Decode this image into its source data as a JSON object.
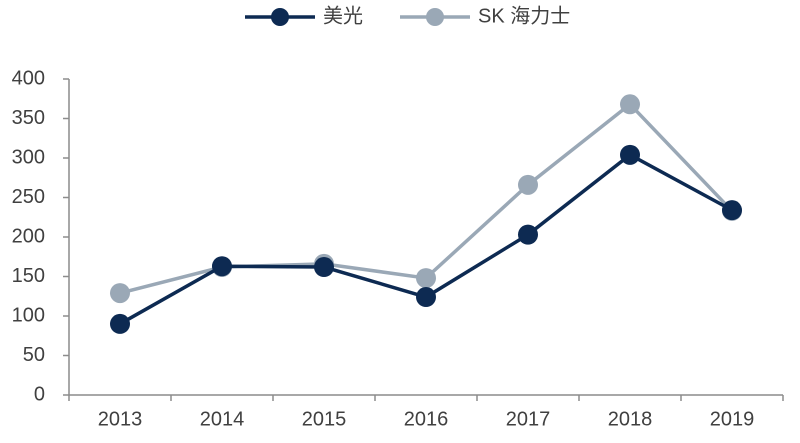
{
  "chart_data": {
    "type": "line",
    "categories": [
      "2013",
      "2014",
      "2015",
      "2016",
      "2017",
      "2018",
      "2019"
    ],
    "series": [
      {
        "name": "美光",
        "color": "#0d2a52",
        "values": [
          90,
          163,
          162,
          124,
          203,
          304,
          234
        ]
      },
      {
        "name": "SK 海力士",
        "color": "#9aa8b6",
        "values": [
          129,
          162,
          166,
          148,
          266,
          368,
          233
        ]
      }
    ],
    "ylim": [
      0,
      400
    ],
    "yticks": [
      0,
      50,
      100,
      150,
      200,
      250,
      300,
      350,
      400
    ],
    "grid": false,
    "legend": "top"
  }
}
